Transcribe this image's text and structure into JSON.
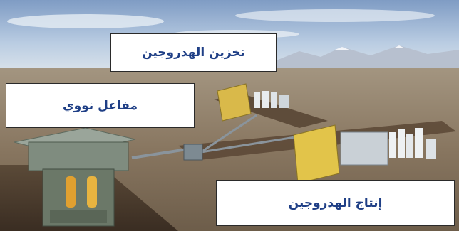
{
  "labels": {
    "hydrogen_storage": "تخزين الهدروجين",
    "nuclear_reactor": "مفاعل نووي",
    "hydrogen_production": "إنتاج الهدروجين"
  },
  "colors": {
    "label_text": "#1f3f86",
    "label_border": "#2a2a2a",
    "sky": "#9fb7d6",
    "ground": "#7a6a55",
    "trench": "#4a3a2c",
    "panel_yellow": "#e2c44a"
  }
}
